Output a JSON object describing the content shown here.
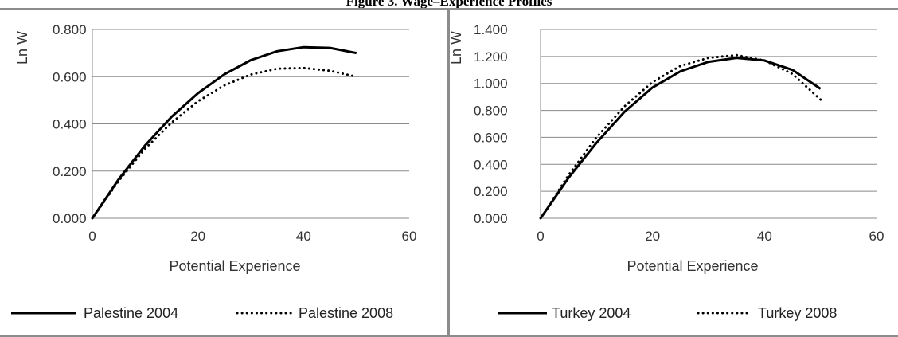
{
  "page_title": "Figure 3. Wage–Experience Profiles",
  "chart_data": [
    {
      "type": "line",
      "title": "",
      "xlabel": "Potential Experience",
      "ylabel": "Ln W",
      "xlim": [
        0,
        60
      ],
      "ylim": [
        0,
        0.8
      ],
      "xticks": [
        "0",
        "20",
        "40",
        "60"
      ],
      "yticks": [
        "0.000",
        "0.200",
        "0.400",
        "0.600",
        "0.800"
      ],
      "grid": "horizontal",
      "legend": "bottom",
      "x": [
        0,
        5,
        10,
        15,
        20,
        25,
        30,
        35,
        40,
        45,
        50
      ],
      "series": [
        {
          "name": "Palestine 2004",
          "style": "solid",
          "values": [
            0.0,
            0.166,
            0.309,
            0.43,
            0.53,
            0.61,
            0.67,
            0.708,
            0.725,
            0.722,
            0.7
          ]
        },
        {
          "name": "Palestine 2008",
          "style": "dotted",
          "values": [
            0.0,
            0.159,
            0.295,
            0.405,
            0.496,
            0.563,
            0.609,
            0.634,
            0.637,
            0.625,
            0.6
          ]
        }
      ]
    },
    {
      "type": "line",
      "title": "",
      "xlabel": "Potential Experience",
      "ylabel": "Ln W",
      "xlim": [
        0,
        60
      ],
      "ylim": [
        0,
        1.4
      ],
      "xticks": [
        "0",
        "20",
        "40",
        "60"
      ],
      "yticks": [
        "0.000",
        "0.200",
        "0.400",
        "0.600",
        "0.800",
        "1.000",
        "1.200",
        "1.400"
      ],
      "grid": "horizontal",
      "legend": "bottom",
      "x": [
        0,
        5,
        10,
        15,
        20,
        25,
        30,
        35,
        40,
        45,
        50
      ],
      "series": [
        {
          "name": "Turkey 2004",
          "style": "solid",
          "values": [
            0.0,
            0.3,
            0.56,
            0.79,
            0.97,
            1.09,
            1.16,
            1.19,
            1.17,
            1.1,
            0.96
          ]
        },
        {
          "name": "Turkey 2008",
          "style": "dotted",
          "values": [
            0.0,
            0.32,
            0.6,
            0.83,
            1.01,
            1.13,
            1.19,
            1.21,
            1.17,
            1.07,
            0.88
          ]
        }
      ]
    }
  ]
}
